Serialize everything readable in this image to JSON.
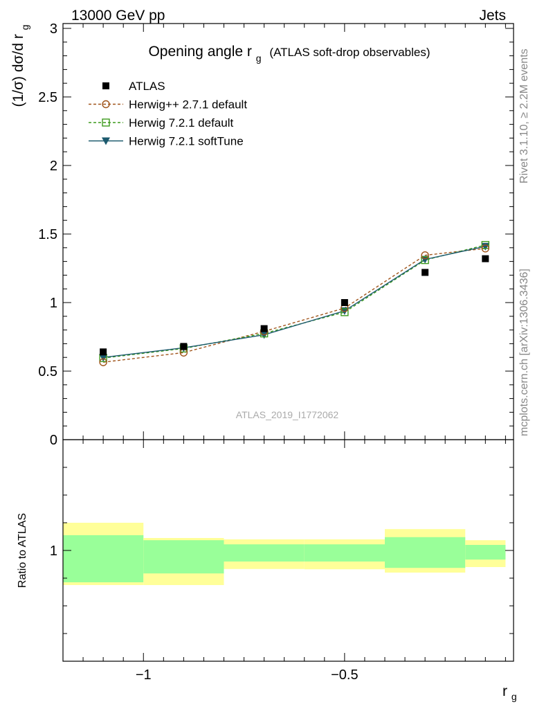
{
  "header": {
    "left_label": "13000 GeV pp",
    "right_label": "Jets"
  },
  "side_labels": {
    "rivet": "Rivet 3.1.10, ≥ 2.2M events",
    "mcplots": "mcplots.cern.ch [arXiv:1306.3436]"
  },
  "watermark": "ATLAS_2019_I1772062",
  "chart_data": [
    {
      "type": "scatter",
      "panel": "main",
      "title": "Opening angle r",
      "title_sub": "g",
      "title_suffix": "(ATLAS soft-drop observables)",
      "ylabel": "(1/σ) dσ/d r",
      "ylabel_sub": "g",
      "xlim": [
        -1.2,
        -0.08
      ],
      "ylim": [
        0,
        3
      ],
      "yticks": [
        0,
        0.5,
        1,
        1.5,
        2,
        2.5,
        3
      ],
      "ytick_labels": [
        "0",
        "0.5",
        "1",
        "1.5",
        "2",
        "2.5",
        "3"
      ],
      "legend_position": "top-left",
      "series": [
        {
          "name": "ATLAS",
          "style": "data",
          "color": "#000000",
          "marker": "filled-square",
          "x": [
            -1.1,
            -0.9,
            -0.7,
            -0.5,
            -0.3,
            -0.15
          ],
          "y": [
            0.64,
            0.68,
            0.81,
            1.0,
            1.22,
            1.32
          ]
        },
        {
          "name": "Herwig++ 2.7.1 default",
          "style": "dashed",
          "color": "#a0541a",
          "marker": "open-circle",
          "x": [
            -1.1,
            -0.9,
            -0.7,
            -0.5,
            -0.3,
            -0.15
          ],
          "y": [
            0.565,
            0.635,
            0.79,
            0.96,
            1.345,
            1.395
          ]
        },
        {
          "name": "Herwig 7.2.1 default",
          "style": "dashed",
          "color": "#3d9a1c",
          "marker": "open-square",
          "x": [
            -1.1,
            -0.9,
            -0.7,
            -0.5,
            -0.3,
            -0.15
          ],
          "y": [
            0.595,
            0.665,
            0.775,
            0.93,
            1.31,
            1.42
          ]
        },
        {
          "name": "Herwig 7.2.1 softTune",
          "style": "solid",
          "color": "#1c5a6e",
          "marker": "filled-triangle-down",
          "x": [
            -1.1,
            -0.9,
            -0.7,
            -0.5,
            -0.3,
            -0.15
          ],
          "y": [
            0.6,
            0.67,
            0.765,
            0.94,
            1.315,
            1.41
          ]
        }
      ]
    },
    {
      "type": "area",
      "panel": "ratio",
      "ylabel": "Ratio to ATLAS",
      "xlabel": "r",
      "xlabel_sub": "g",
      "xlim": [
        -1.2,
        -0.08
      ],
      "ylim": [
        0.6,
        1.4
      ],
      "yticks": [
        1
      ],
      "ytick_labels": [
        "1"
      ],
      "xticks": [
        -1,
        -0.5
      ],
      "xtick_labels": [
        "−1",
        "−0.5"
      ],
      "bands": [
        {
          "xlo": -1.2,
          "xhi": -1.0,
          "inner": [
            0.885,
            1.055
          ],
          "outer": [
            0.875,
            1.1
          ]
        },
        {
          "xlo": -1.0,
          "xhi": -0.8,
          "inner": [
            0.917,
            1.037
          ],
          "outer": [
            0.875,
            1.045
          ]
        },
        {
          "xlo": -0.8,
          "xhi": -0.6,
          "inner": [
            0.96,
            1.022
          ],
          "outer": [
            0.933,
            1.04
          ]
        },
        {
          "xlo": -0.6,
          "xhi": -0.4,
          "inner": [
            0.96,
            1.022
          ],
          "outer": [
            0.932,
            1.04
          ]
        },
        {
          "xlo": -0.4,
          "xhi": -0.2,
          "inner": [
            0.937,
            1.048
          ],
          "outer": [
            0.92,
            1.077
          ]
        },
        {
          "xlo": -0.2,
          "xhi": -0.1,
          "inner": [
            0.967,
            1.02
          ],
          "outer": [
            0.94,
            1.037
          ]
        }
      ],
      "colors": {
        "inner": "#99ff99",
        "outer": "#ffff99"
      }
    }
  ]
}
